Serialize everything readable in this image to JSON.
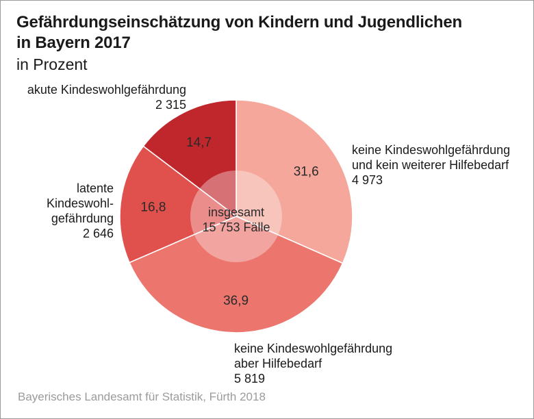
{
  "title_line1": "Gefährdungseinschätzung von Kindern und Jugendlichen",
  "title_line2": "in Bayern 2017",
  "subtitle": "in Prozent",
  "source": "Bayerisches Landesamt für Statistik, Fürth 2018",
  "center": {
    "line1": "insgesamt",
    "line2": "15 753 Fälle"
  },
  "colors": {
    "akut": "#c0272d",
    "latent": "#e0504d",
    "hilfebedarf": "#ec766e",
    "kein": "#f4a79a",
    "center": "#ffffff",
    "frame": "#9a9a9a"
  },
  "labels": {
    "kein": [
      "keine Kindeswohlgefährdung",
      "und kein weiterer Hilfebedarf",
      "4 973"
    ],
    "hilfebedarf": [
      "keine Kindeswohlgefährdung",
      "aber Hilfebedarf",
      "5 819"
    ],
    "latent": [
      "latente",
      "Kindeswohl-",
      "gefährdung",
      "2 646"
    ],
    "akut": [
      "akute Kindeswohlgefährdung",
      "2 315"
    ]
  },
  "chart_data": {
    "type": "pie",
    "variant": "donut",
    "title": "Gefährdungseinschätzung von Kindern und Jugendlichen in Bayern 2017",
    "subtitle": "in Prozent",
    "total_label": "insgesamt 15 753 Fälle",
    "slices": [
      {
        "key": "kein",
        "label": "keine Kindeswohlgefährdung und kein weiterer Hilfebedarf",
        "value": 31.6,
        "value_label": "31,6",
        "count": "4 973"
      },
      {
        "key": "hilfebedarf",
        "label": "keine Kindeswohlgefährdung aber Hilfebedarf",
        "value": 36.9,
        "value_label": "36,9",
        "count": "5 819"
      },
      {
        "key": "latent",
        "label": "latente Kindeswohlgefährdung",
        "value": 16.8,
        "value_label": "16,8",
        "count": "2 646"
      },
      {
        "key": "akut",
        "label": "akute Kindeswohlgefährdung",
        "value": 14.7,
        "value_label": "14,7",
        "count": "2 315"
      }
    ]
  }
}
